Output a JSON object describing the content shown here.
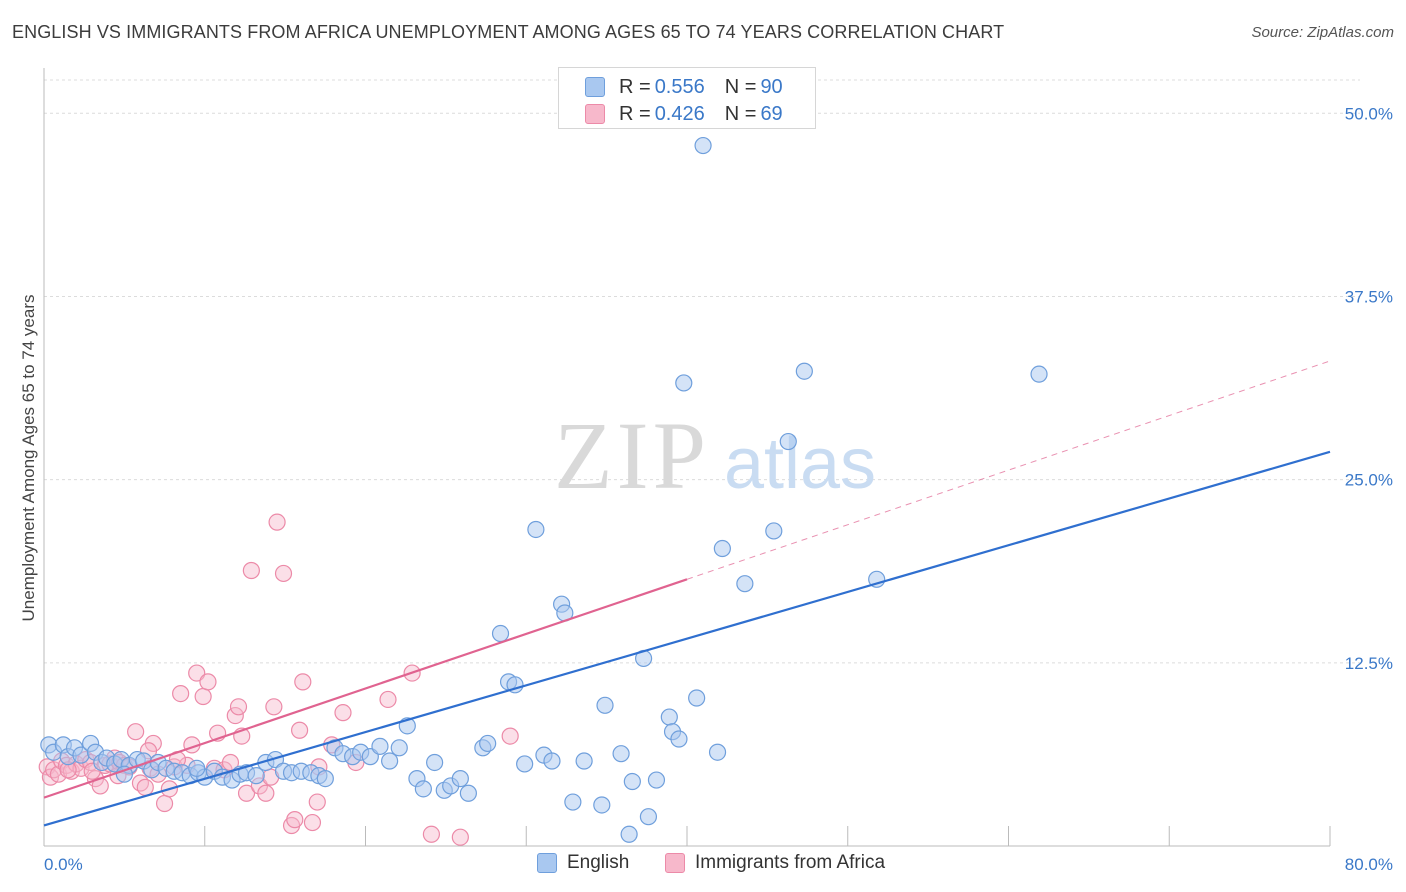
{
  "title": "ENGLISH VS IMMIGRANTS FROM AFRICA UNEMPLOYMENT AMONG AGES 65 TO 74 YEARS CORRELATION CHART",
  "source": "Source: ZipAtlas.com",
  "watermark": {
    "zip": "ZIP",
    "atlas": "atlas"
  },
  "legend": {
    "rows": [
      {
        "r_label": "R =",
        "r_value": "0.556",
        "n_label": "N =",
        "n_value": "90"
      },
      {
        "r_label": "R =",
        "r_value": "0.426",
        "n_label": "N =",
        "n_value": "69"
      }
    ]
  },
  "bottom_legend": {
    "english": "English",
    "africa": "Immigrants from Africa"
  },
  "colors": {
    "english_fill": "#a9c8f0",
    "english_stroke": "#6f9fdc",
    "english_line": "#2f6fcf",
    "africa_fill": "#f7b8cb",
    "africa_stroke": "#ec8aa8",
    "africa_line": "#e06390",
    "tick_text": "#3a78c8",
    "grid": "#dcdcdc"
  },
  "chart_data": {
    "type": "scatter",
    "title": "ENGLISH VS IMMIGRANTS FROM AFRICA UNEMPLOYMENT AMONG AGES 65 TO 74 YEARS CORRELATION CHART",
    "xlabel": "",
    "ylabel": "Unemployment Among Ages 65 to 74 years",
    "xlim": [
      0,
      80
    ],
    "ylim": [
      0,
      52
    ],
    "x_tick_labels": [
      "0.0%",
      "80.0%"
    ],
    "y_ticks": [
      12.5,
      25.0,
      37.5,
      50.0
    ],
    "y_tick_labels": [
      "12.5%",
      "25.0%",
      "37.5%",
      "50.0%"
    ],
    "grid": true,
    "legend_position": "top-center",
    "series": [
      {
        "name": "English",
        "r": 0.556,
        "n": 90,
        "trend": {
          "x": [
            0,
            80
          ],
          "y": [
            1.4,
            26.9
          ],
          "style": "solid"
        },
        "points": [
          [
            0.3,
            6.9
          ],
          [
            0.6,
            6.4
          ],
          [
            1.2,
            6.9
          ],
          [
            1.5,
            6.1
          ],
          [
            1.9,
            6.7
          ],
          [
            2.3,
            6.2
          ],
          [
            2.9,
            7.0
          ],
          [
            3.2,
            6.4
          ],
          [
            3.6,
            5.7
          ],
          [
            3.9,
            6.0
          ],
          [
            4.4,
            5.6
          ],
          [
            4.8,
            5.9
          ],
          [
            5.3,
            5.5
          ],
          [
            5.8,
            5.9
          ],
          [
            6.2,
            5.8
          ],
          [
            6.7,
            5.2
          ],
          [
            7.1,
            5.7
          ],
          [
            7.6,
            5.3
          ],
          [
            8.1,
            5.1
          ],
          [
            8.6,
            5.0
          ],
          [
            9.1,
            4.8
          ],
          [
            9.6,
            5.0
          ],
          [
            10.0,
            4.7
          ],
          [
            10.6,
            5.1
          ],
          [
            11.1,
            4.7
          ],
          [
            11.7,
            4.5
          ],
          [
            12.2,
            4.9
          ],
          [
            12.6,
            5.0
          ],
          [
            13.2,
            4.8
          ],
          [
            13.8,
            5.7
          ],
          [
            14.4,
            5.9
          ],
          [
            14.9,
            5.1
          ],
          [
            15.4,
            5.0
          ],
          [
            16.0,
            5.1
          ],
          [
            16.6,
            5.0
          ],
          [
            17.1,
            4.8
          ],
          [
            17.5,
            4.6
          ],
          [
            18.1,
            6.7
          ],
          [
            18.6,
            6.3
          ],
          [
            19.2,
            6.1
          ],
          [
            19.7,
            6.4
          ],
          [
            20.3,
            6.1
          ],
          [
            20.9,
            6.8
          ],
          [
            21.5,
            5.8
          ],
          [
            22.1,
            6.7
          ],
          [
            22.6,
            8.2
          ],
          [
            23.2,
            4.6
          ],
          [
            23.6,
            3.9
          ],
          [
            24.3,
            5.7
          ],
          [
            24.9,
            3.8
          ],
          [
            25.3,
            4.1
          ],
          [
            25.9,
            4.6
          ],
          [
            26.4,
            3.6
          ],
          [
            27.3,
            6.7
          ],
          [
            27.6,
            7.0
          ],
          [
            28.4,
            14.5
          ],
          [
            28.9,
            11.2
          ],
          [
            29.3,
            11.0
          ],
          [
            29.9,
            5.6
          ],
          [
            30.6,
            21.6
          ],
          [
            31.1,
            6.2
          ],
          [
            31.6,
            5.8
          ],
          [
            32.2,
            16.5
          ],
          [
            32.4,
            15.9
          ],
          [
            32.9,
            3.0
          ],
          [
            33.6,
            5.8
          ],
          [
            34.7,
            2.8
          ],
          [
            34.9,
            9.6
          ],
          [
            35.9,
            6.3
          ],
          [
            36.4,
            0.8
          ],
          [
            36.6,
            4.4
          ],
          [
            37.3,
            12.8
          ],
          [
            37.6,
            2.0
          ],
          [
            38.1,
            4.5
          ],
          [
            38.9,
            8.8
          ],
          [
            39.1,
            7.8
          ],
          [
            39.5,
            7.3
          ],
          [
            39.8,
            31.6
          ],
          [
            40.6,
            10.1
          ],
          [
            41.9,
            6.4
          ],
          [
            42.2,
            20.3
          ],
          [
            43.6,
            17.9
          ],
          [
            45.4,
            21.5
          ],
          [
            46.3,
            27.6
          ],
          [
            47.3,
            32.4
          ],
          [
            51.8,
            18.2
          ],
          [
            61.9,
            32.2
          ],
          [
            41.0,
            47.8
          ],
          [
            9.5,
            5.3
          ],
          [
            5.0,
            4.9
          ]
        ]
      },
      {
        "name": "Immigrants from Africa",
        "r": 0.426,
        "n": 69,
        "trend": {
          "x": [
            0,
            40
          ],
          "y": [
            3.3,
            18.2
          ],
          "style": "solid"
        },
        "trend_extension": {
          "x": [
            40,
            80
          ],
          "y": [
            18.2,
            33.1
          ],
          "style": "dashed"
        },
        "points": [
          [
            0.2,
            5.4
          ],
          [
            0.4,
            4.7
          ],
          [
            0.6,
            5.2
          ],
          [
            0.9,
            4.9
          ],
          [
            1.1,
            5.8
          ],
          [
            1.4,
            5.5
          ],
          [
            1.7,
            5.1
          ],
          [
            2.0,
            5.6
          ],
          [
            2.3,
            5.3
          ],
          [
            2.6,
            5.9
          ],
          [
            2.9,
            5.7
          ],
          [
            3.2,
            4.6
          ],
          [
            3.5,
            4.1
          ],
          [
            3.8,
            5.5
          ],
          [
            4.1,
            5.6
          ],
          [
            4.4,
            6.0
          ],
          [
            4.7,
            5.7
          ],
          [
            5.0,
            5.5
          ],
          [
            5.3,
            5.4
          ],
          [
            5.7,
            7.8
          ],
          [
            6.0,
            4.3
          ],
          [
            6.3,
            4.0
          ],
          [
            6.6,
            5.3
          ],
          [
            6.8,
            7.0
          ],
          [
            7.1,
            4.9
          ],
          [
            7.5,
            2.9
          ],
          [
            7.8,
            3.9
          ],
          [
            8.1,
            5.4
          ],
          [
            8.5,
            10.4
          ],
          [
            8.9,
            5.5
          ],
          [
            9.2,
            6.9
          ],
          [
            9.5,
            11.8
          ],
          [
            9.9,
            10.2
          ],
          [
            10.2,
            11.2
          ],
          [
            10.6,
            5.3
          ],
          [
            10.8,
            7.7
          ],
          [
            11.2,
            5.2
          ],
          [
            11.6,
            5.7
          ],
          [
            11.9,
            8.9
          ],
          [
            12.1,
            9.5
          ],
          [
            12.3,
            7.5
          ],
          [
            12.6,
            3.6
          ],
          [
            12.9,
            18.8
          ],
          [
            13.4,
            4.1
          ],
          [
            13.8,
            3.6
          ],
          [
            14.1,
            4.7
          ],
          [
            14.3,
            9.5
          ],
          [
            14.5,
            22.1
          ],
          [
            14.9,
            18.6
          ],
          [
            15.4,
            1.4
          ],
          [
            15.6,
            1.8
          ],
          [
            15.9,
            7.9
          ],
          [
            16.1,
            11.2
          ],
          [
            16.7,
            1.6
          ],
          [
            17.0,
            3.0
          ],
          [
            17.1,
            5.4
          ],
          [
            17.9,
            6.9
          ],
          [
            18.6,
            9.1
          ],
          [
            19.4,
            5.7
          ],
          [
            21.4,
            10.0
          ],
          [
            22.9,
            11.8
          ],
          [
            24.1,
            0.8
          ],
          [
            25.9,
            0.6
          ],
          [
            29.0,
            7.5
          ],
          [
            3.0,
            5.1
          ],
          [
            6.5,
            6.5
          ],
          [
            8.3,
            5.9
          ],
          [
            1.5,
            5.2
          ],
          [
            4.6,
            4.8
          ]
        ]
      }
    ]
  }
}
